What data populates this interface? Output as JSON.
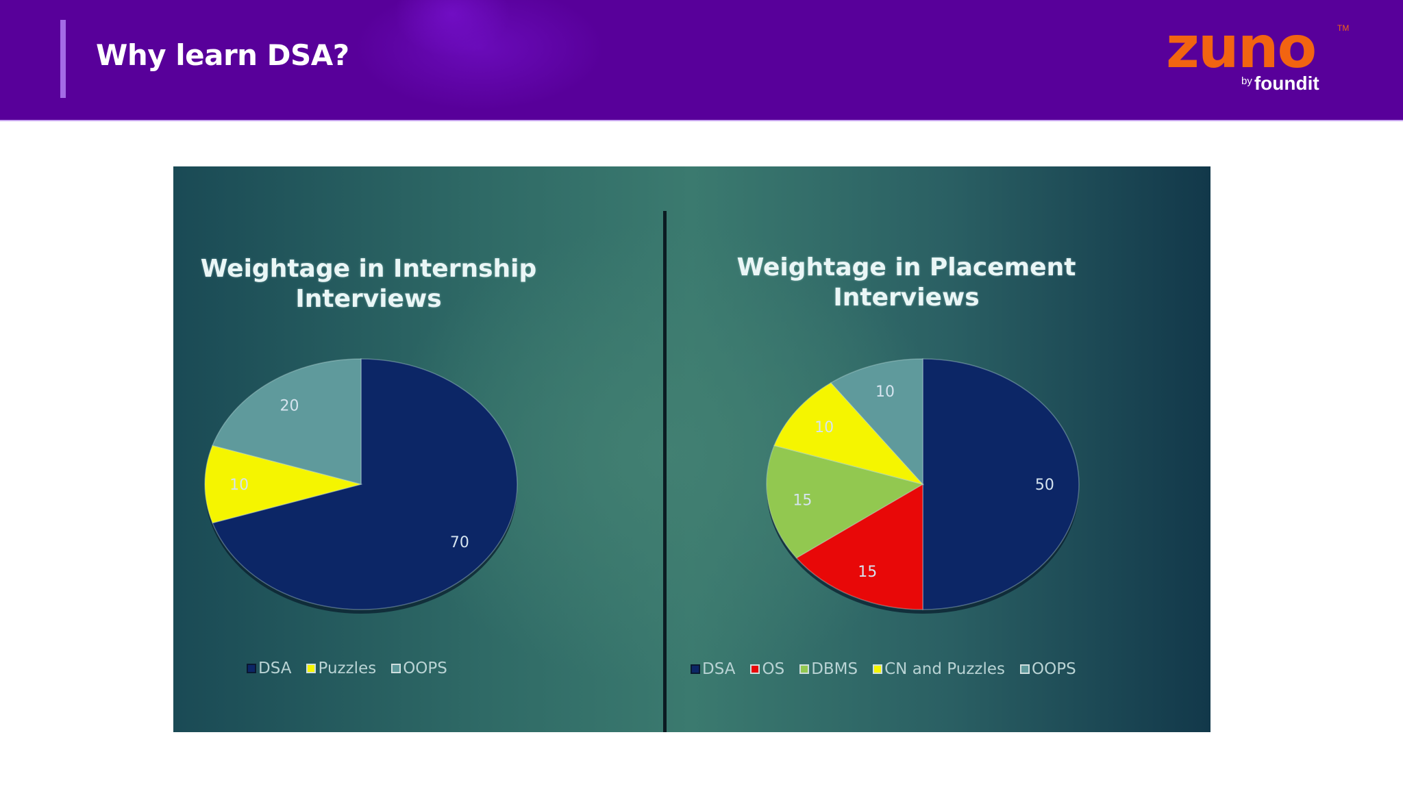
{
  "header": {
    "title": "Why learn DSA?",
    "logo": {
      "wordmark": "zuno",
      "trademark": "TM",
      "by": "by",
      "brand": "foundit"
    },
    "colors": {
      "background": "#58009a",
      "accent_bar": "#a46be6",
      "logo_orange": "#f26411"
    }
  },
  "chart_data": [
    {
      "type": "pie",
      "title": "Weightage in Internship Interviews",
      "title_lines": [
        "Weightage in Internship",
        "Interviews"
      ],
      "categories": [
        "DSA",
        "Puzzles",
        "OOPS"
      ],
      "values": [
        70,
        10,
        20
      ],
      "colors": [
        "#0c2666",
        "#f5f500",
        "#5f9a9c"
      ],
      "data_labels": [
        "70",
        "10",
        "20"
      ],
      "start_angle": 0,
      "direction": "clockwise",
      "legend_position": "bottom"
    },
    {
      "type": "pie",
      "title": "Weightage in Placement Interviews",
      "title_lines": [
        "Weightage in Placement",
        "Interviews"
      ],
      "categories": [
        "DSA",
        "OS",
        "DBMS",
        "CN and Puzzles",
        "OOPS"
      ],
      "values": [
        50,
        15,
        15,
        10,
        10
      ],
      "colors": [
        "#0c2666",
        "#e80808",
        "#92c850",
        "#f5f500",
        "#5f9a9c"
      ],
      "data_labels": [
        "50",
        "15",
        "15",
        "10",
        "10"
      ],
      "start_angle": 0,
      "direction": "clockwise",
      "legend_position": "bottom"
    }
  ]
}
